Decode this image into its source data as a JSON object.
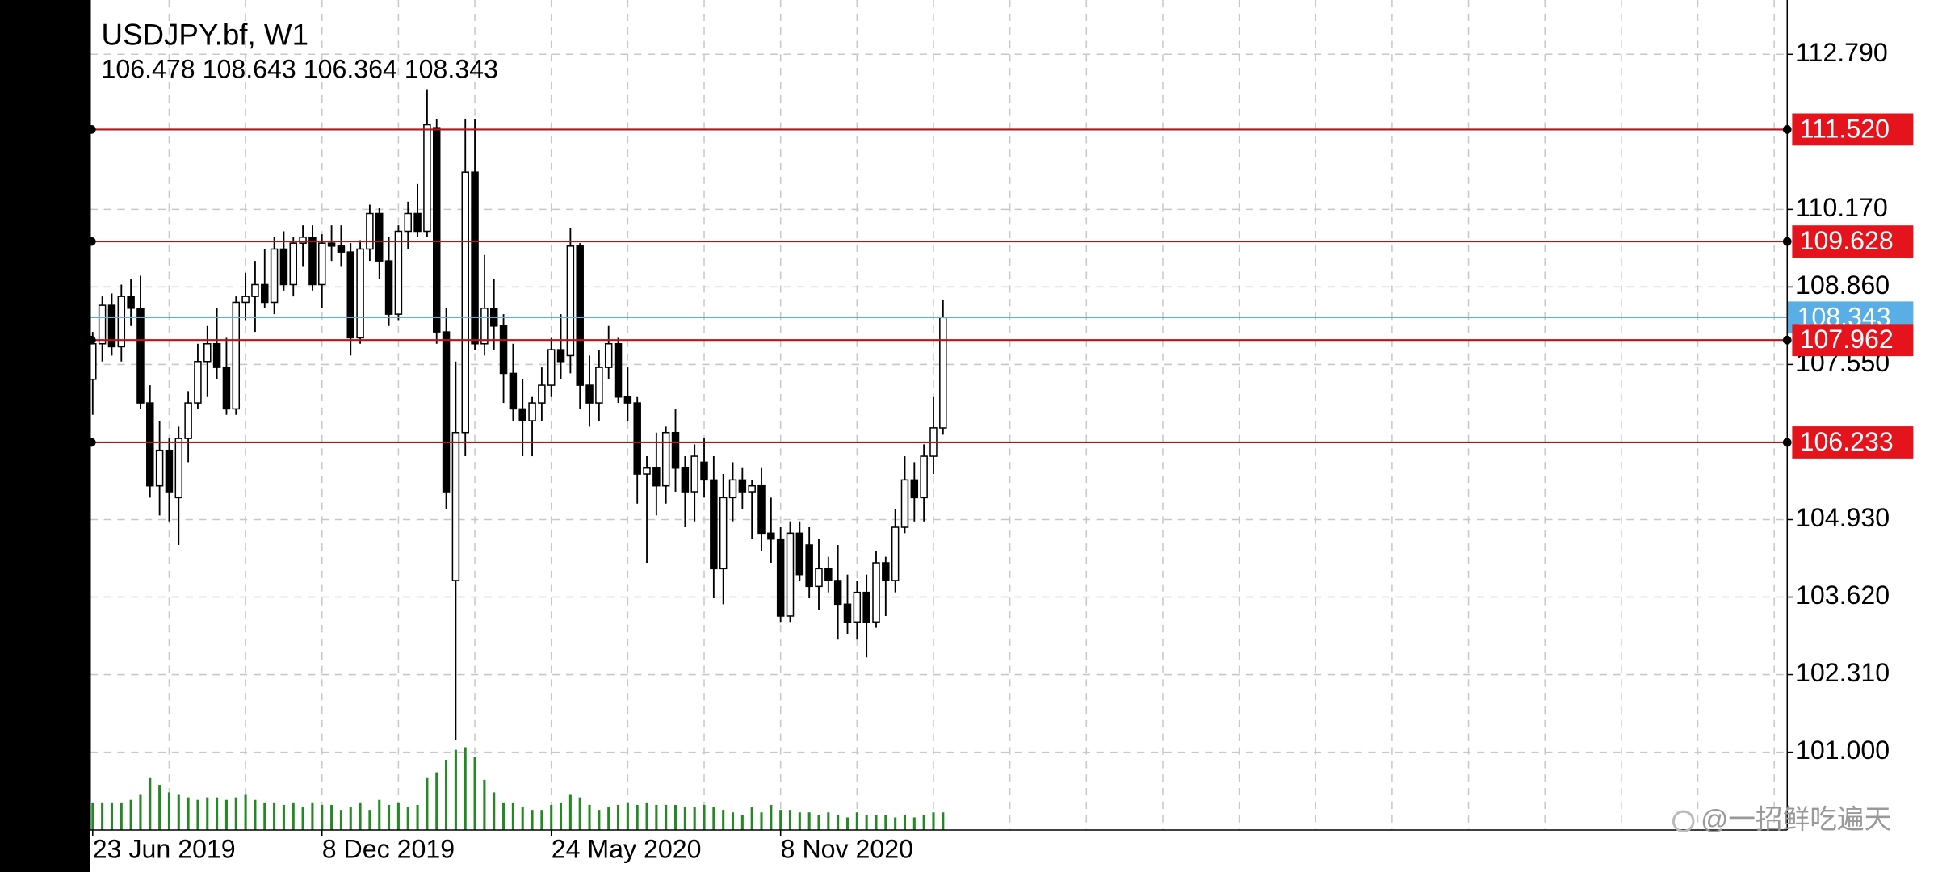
{
  "chart_data": {
    "type": "candlestick",
    "title": "USDJPY.bf, W1",
    "categories": [
      "23 Jun 2019",
      null,
      null,
      null,
      null,
      null,
      null,
      null,
      null,
      null,
      null,
      null,
      null,
      null,
      null,
      null,
      null,
      null,
      null,
      null,
      null,
      null,
      null,
      null,
      "8 Dec 2019",
      null,
      null,
      null,
      null,
      null,
      null,
      null,
      null,
      null,
      null,
      null,
      null,
      null,
      null,
      null,
      null,
      null,
      null,
      null,
      null,
      null,
      null,
      null,
      "24 May 2020",
      null,
      null,
      null,
      null,
      null,
      null,
      null,
      null,
      null,
      null,
      null,
      null,
      null,
      null,
      null,
      null,
      null,
      null,
      null,
      null,
      null,
      null,
      null,
      "8 Nov 2020",
      null,
      null,
      null,
      null,
      null,
      null,
      null,
      null,
      null,
      null,
      null,
      null,
      null,
      null,
      null,
      null,
      null
    ],
    "open": [
      107.3,
      107.9,
      108.55,
      107.85,
      108.7,
      108.5,
      106.9,
      105.5,
      106.1,
      105.3,
      106.3,
      106.9,
      107.6,
      107.9,
      107.5,
      106.8,
      108.6,
      108.7,
      108.9,
      108.6,
      109.5,
      108.9,
      109.6,
      109.7,
      108.9,
      109.6,
      109.55,
      109.45,
      108.0,
      109.5,
      110.1,
      109.3,
      108.4,
      109.8,
      110.1,
      109.8,
      111.55,
      108.1,
      103.9,
      106.4,
      110.8,
      107.9,
      108.5,
      108.2,
      107.4,
      106.8,
      106.6,
      106.9,
      107.2,
      107.8,
      107.7,
      109.55,
      107.2,
      106.9,
      107.5,
      107.9,
      107.0,
      106.9,
      105.7,
      105.8,
      105.5,
      106.4,
      105.8,
      105.4,
      105.9,
      105.6,
      104.1,
      105.3,
      105.6,
      105.4,
      105.5,
      104.7,
      104.6,
      103.3,
      104.7,
      104.5,
      103.8,
      104.1,
      103.9,
      103.5,
      103.2,
      103.7,
      103.2,
      104.2,
      103.9,
      104.8,
      105.6,
      105.3,
      106.0,
      106.478
    ],
    "high": [
      108.1,
      108.7,
      108.75,
      108.9,
      109.0,
      109.05,
      107.2,
      106.6,
      106.3,
      106.5,
      107.1,
      107.9,
      108.2,
      108.5,
      108.0,
      108.7,
      109.1,
      109.3,
      109.5,
      109.7,
      109.8,
      109.7,
      109.9,
      109.9,
      109.75,
      109.9,
      109.9,
      109.6,
      109.65,
      110.25,
      110.2,
      109.7,
      109.9,
      110.3,
      110.6,
      112.2,
      111.7,
      108.5,
      107.6,
      111.7,
      111.7,
      109.4,
      109.0,
      108.4,
      107.9,
      107.3,
      107.0,
      107.5,
      108.0,
      108.4,
      109.85,
      109.6,
      107.7,
      107.8,
      108.2,
      108.0,
      107.5,
      107.0,
      106.0,
      106.4,
      106.5,
      106.8,
      106.0,
      106.2,
      106.3,
      106.0,
      105.7,
      105.9,
      105.8,
      105.6,
      105.8,
      105.3,
      104.8,
      104.9,
      104.9,
      104.8,
      104.6,
      104.3,
      104.5,
      104.0,
      103.9,
      104.0,
      104.4,
      104.3,
      105.1,
      106.0,
      105.9,
      106.2,
      107.0,
      108.643
    ],
    "low": [
      106.7,
      107.6,
      107.7,
      107.6,
      108.2,
      106.8,
      105.3,
      105.0,
      104.9,
      104.5,
      105.9,
      106.8,
      107.0,
      107.3,
      106.7,
      106.7,
      108.3,
      108.1,
      108.5,
      108.4,
      108.8,
      108.7,
      109.2,
      108.8,
      108.5,
      109.3,
      109.2,
      107.7,
      107.9,
      109.3,
      109.0,
      108.2,
      108.3,
      109.5,
      109.7,
      109.7,
      107.9,
      105.1,
      101.2,
      106.0,
      107.8,
      107.7,
      107.8,
      106.9,
      106.6,
      106.0,
      106.0,
      106.6,
      107.0,
      107.3,
      107.4,
      106.8,
      106.5,
      106.6,
      107.3,
      106.9,
      106.6,
      105.2,
      104.2,
      105.0,
      105.2,
      105.4,
      104.8,
      104.9,
      105.3,
      103.6,
      103.5,
      104.9,
      105.1,
      104.6,
      104.4,
      104.2,
      103.2,
      103.2,
      103.9,
      103.6,
      103.4,
      103.7,
      102.9,
      103.0,
      102.9,
      102.6,
      103.1,
      103.3,
      103.7,
      104.7,
      104.9,
      104.9,
      105.7,
      106.364
    ],
    "close": [
      107.9,
      108.55,
      107.85,
      108.7,
      108.5,
      106.9,
      105.5,
      106.1,
      105.4,
      106.3,
      106.9,
      107.6,
      107.9,
      107.5,
      106.8,
      108.6,
      108.7,
      108.9,
      108.6,
      109.5,
      108.9,
      109.6,
      109.7,
      108.9,
      109.6,
      109.55,
      109.45,
      108.0,
      109.5,
      110.1,
      109.3,
      108.4,
      109.8,
      110.1,
      109.8,
      111.6,
      108.1,
      105.4,
      106.4,
      110.8,
      107.9,
      108.5,
      108.2,
      107.4,
      106.8,
      106.6,
      106.9,
      107.2,
      107.8,
      107.6,
      109.55,
      107.2,
      106.9,
      107.5,
      107.9,
      107.0,
      106.9,
      105.7,
      105.8,
      105.5,
      106.4,
      105.8,
      105.4,
      106.0,
      105.6,
      104.1,
      105.3,
      105.6,
      105.4,
      105.5,
      104.7,
      104.6,
      103.3,
      104.7,
      104.0,
      103.8,
      104.1,
      103.9,
      103.5,
      103.2,
      103.7,
      103.2,
      104.2,
      103.9,
      104.8,
      105.6,
      105.3,
      106.0,
      106.48,
      108.343
    ],
    "volume": [
      22,
      22,
      22,
      22,
      24,
      28,
      42,
      36,
      30,
      28,
      26,
      24,
      26,
      26,
      24,
      26,
      28,
      24,
      22,
      22,
      20,
      22,
      18,
      22,
      20,
      20,
      16,
      18,
      22,
      16,
      24,
      20,
      22,
      18,
      20,
      42,
      46,
      56,
      64,
      66,
      58,
      40,
      30,
      22,
      22,
      18,
      16,
      16,
      20,
      22,
      28,
      26,
      20,
      16,
      18,
      20,
      22,
      20,
      22,
      20,
      20,
      20,
      18,
      18,
      20,
      18,
      16,
      14,
      12,
      18,
      14,
      20,
      16,
      16,
      14,
      14,
      12,
      14,
      12,
      10,
      14,
      12,
      12,
      12,
      10,
      12,
      10,
      12,
      14,
      14
    ],
    "ylim": [
      99.685,
      113.708
    ],
    "yticks": [
      {
        "value": 112.79,
        "label": "112.790"
      },
      {
        "value": 110.17,
        "label": "110.170"
      },
      {
        "value": 108.86,
        "label": "108.860"
      },
      {
        "value": 107.55,
        "label": "107.550"
      },
      {
        "value": 104.93,
        "label": "104.930"
      },
      {
        "value": 103.62,
        "label": "103.620"
      },
      {
        "value": 102.31,
        "label": "102.310"
      },
      {
        "value": 101,
        "label": "101.000"
      }
    ],
    "grid": true,
    "levels": [
      {
        "value": 111.52,
        "label": "111.520"
      },
      109.628,
      107.962,
      106.233
    ],
    "level_color": "#b8141c",
    "level_label_color": "#e5141c",
    "current_color": "#5aaee6",
    "up_color": "#ffffff",
    "down_color": "#000000",
    "volume_color": "#238a23"
  },
  "watermark": "@一招鲜吃遍天"
}
